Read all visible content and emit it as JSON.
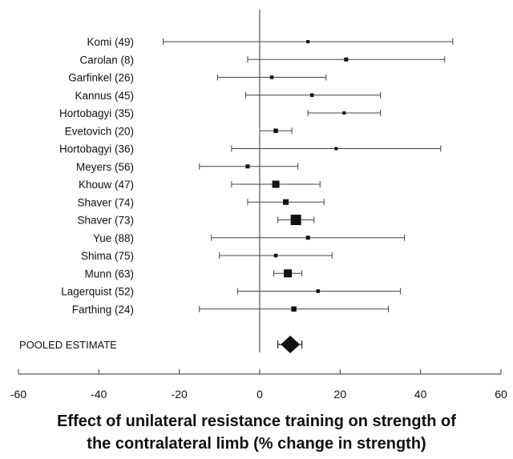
{
  "chart_data": {
    "type": "forest",
    "xlabel_line1": "Effect of unilateral resistance training on strength of",
    "xlabel_line2": "the contralateral limb (% change in strength)",
    "xlim": [
      -60,
      60
    ],
    "xticks": [
      -60,
      -40,
      -20,
      0,
      20,
      40,
      60
    ],
    "reference_line": 0,
    "studies": [
      {
        "label": "Komi (49)",
        "estimate": 12,
        "lower": -24,
        "upper": 48,
        "weight": 1
      },
      {
        "label": "Carolan (8)",
        "estimate": 21.5,
        "lower": -3,
        "upper": 46,
        "weight": 1.2
      },
      {
        "label": "Garfinkel (26)",
        "estimate": 3,
        "lower": -10.5,
        "upper": 16.5,
        "weight": 1.1
      },
      {
        "label": "Kannus (45)",
        "estimate": 13,
        "lower": -3.5,
        "upper": 30,
        "weight": 1.1
      },
      {
        "label": "Hortobagyi (35)",
        "estimate": 21,
        "lower": 12,
        "upper": 30,
        "weight": 1
      },
      {
        "label": "Evetovich (20)",
        "estimate": 4,
        "lower": 0,
        "upper": 8,
        "weight": 1.3
      },
      {
        "label": "Hortobagyi (36)",
        "estimate": 19,
        "lower": -7,
        "upper": 45,
        "weight": 1
      },
      {
        "label": "Meyers (56)",
        "estimate": -3,
        "lower": -15,
        "upper": 9.5,
        "weight": 1.2
      },
      {
        "label": "Khouw (47)",
        "estimate": 4,
        "lower": -7,
        "upper": 15,
        "weight": 2
      },
      {
        "label": "Shaver (74)",
        "estimate": 6.5,
        "lower": -3,
        "upper": 16,
        "weight": 1.6
      },
      {
        "label": "Shaver (73)",
        "estimate": 9,
        "lower": 4.5,
        "upper": 13.5,
        "weight": 2.8
      },
      {
        "label": "Yue (88)",
        "estimate": 12,
        "lower": -12,
        "upper": 36,
        "weight": 1.2
      },
      {
        "label": "Shima (75)",
        "estimate": 4,
        "lower": -10,
        "upper": 18,
        "weight": 1.1
      },
      {
        "label": "Munn (63)",
        "estimate": 7,
        "lower": 3.5,
        "upper": 10.5,
        "weight": 2.2
      },
      {
        "label": "Lagerquist (52)",
        "estimate": 14.5,
        "lower": -5.5,
        "upper": 35,
        "weight": 1.1
      },
      {
        "label": "Farthing (24)",
        "estimate": 8.5,
        "lower": -15,
        "upper": 32,
        "weight": 1.5
      }
    ],
    "pooled": {
      "label": "POOLED ESTIMATE",
      "estimate": 7.6,
      "lower": 4.5,
      "upper": 10.5
    }
  }
}
